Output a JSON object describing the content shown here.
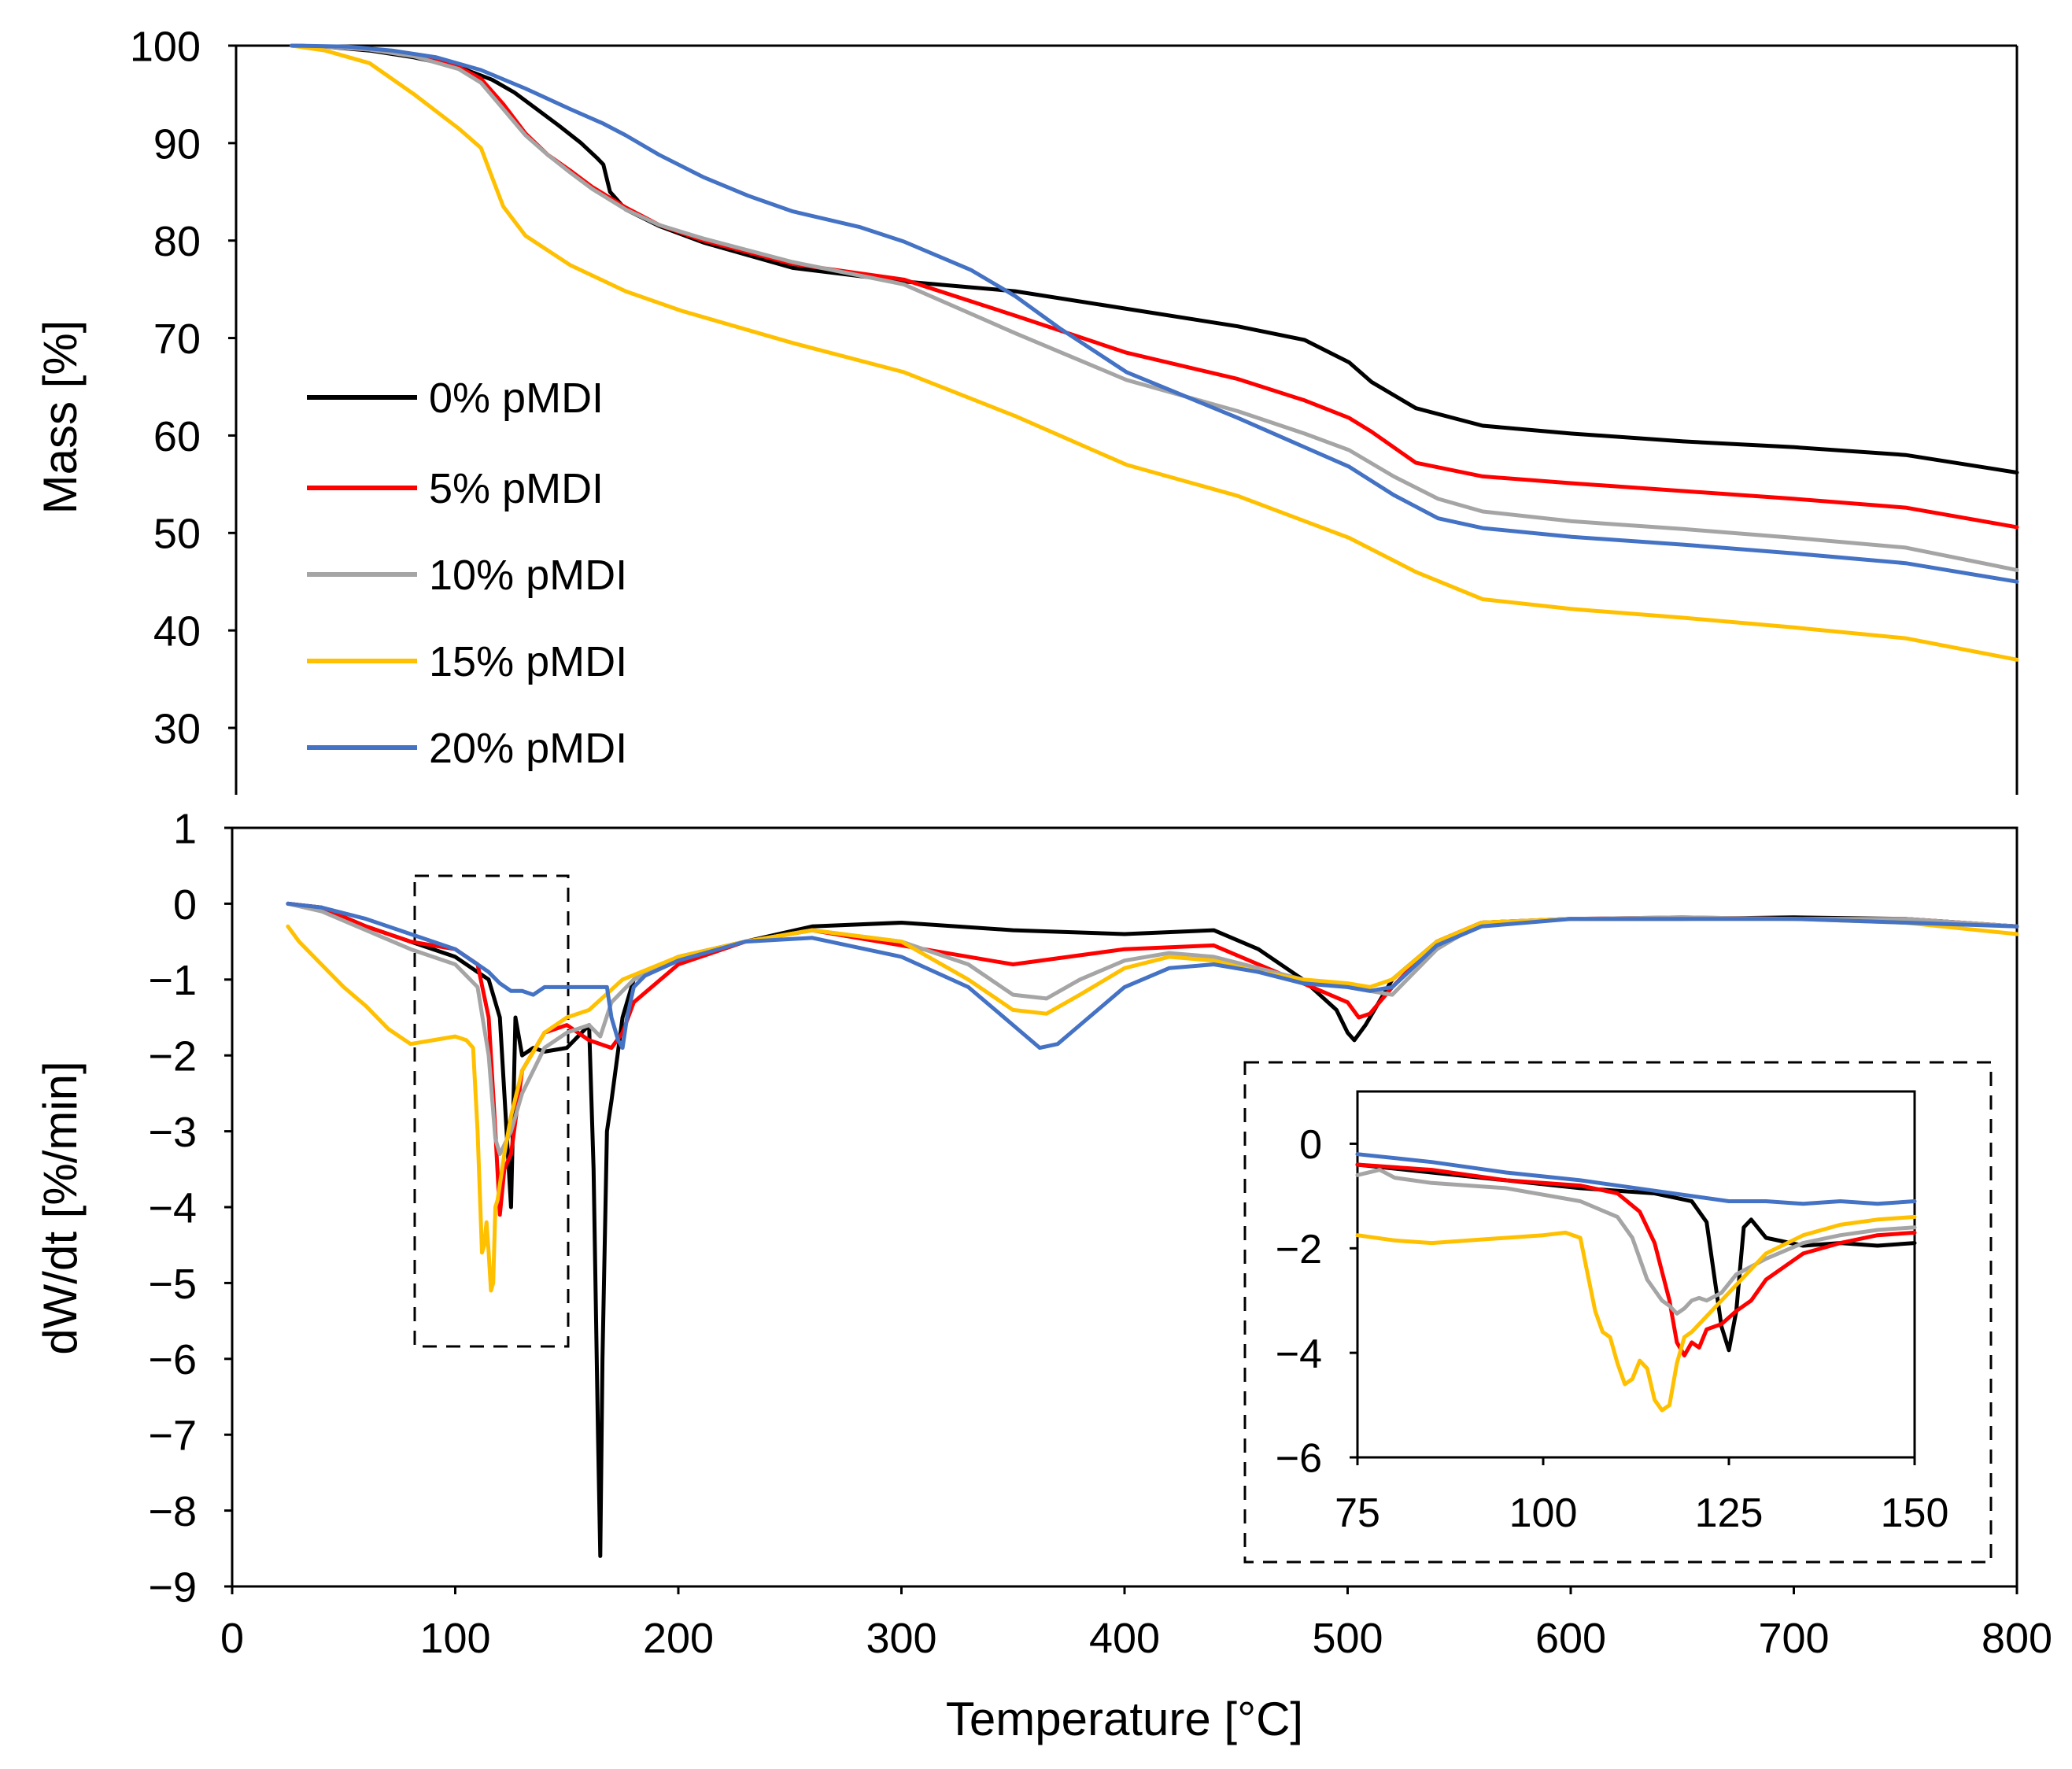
{
  "colors": {
    "0% pMDI": "#000000",
    "5% pMDI": "#ff0000",
    "10% pMDI": "#a5a5a5",
    "15% pMDI": "#ffc000",
    "20% pMDI": "#4472c4"
  },
  "chart_data": [
    {
      "id": "tg",
      "type": "line",
      "title": "",
      "xlabel": "Temperature [°C]",
      "ylabel": "Mass [%]",
      "xlim": [
        0,
        800
      ],
      "ylim": [
        25,
        100
      ],
      "yticks": [
        30,
        40,
        50,
        60,
        70,
        80,
        90,
        100
      ],
      "grid": false,
      "legend": "left",
      "series": [
        {
          "name": "0% pMDI",
          "x": [
            25,
            40,
            60,
            80,
            100,
            115,
            125,
            135,
            145,
            155,
            162,
            165,
            168,
            175,
            190,
            210,
            250,
            300,
            350,
            400,
            450,
            480,
            500,
            510,
            530,
            560,
            600,
            650,
            700,
            750,
            800
          ],
          "y": [
            100,
            99.9,
            99.5,
            98.8,
            97.8,
            96.5,
            95.2,
            93.5,
            91.8,
            90,
            88.5,
            87.8,
            85,
            83.2,
            81.5,
            79.8,
            77.2,
            75.8,
            74.8,
            73,
            71.2,
            69.8,
            67.5,
            65.5,
            62.8,
            61,
            60.2,
            59.4,
            58.8,
            58,
            56.2
          ]
        },
        {
          "name": "5% pMDI",
          "x": [
            25,
            40,
            60,
            80,
            100,
            110,
            120,
            130,
            140,
            150,
            160,
            175,
            190,
            210,
            250,
            300,
            350,
            400,
            450,
            480,
            500,
            510,
            530,
            560,
            600,
            650,
            700,
            750,
            800
          ],
          "y": [
            100,
            99.9,
            99.6,
            99,
            97.8,
            96.6,
            94,
            91,
            88.8,
            87.2,
            85.5,
            83.4,
            81.6,
            80,
            77.6,
            76,
            72.3,
            68.5,
            65.8,
            63.6,
            61.8,
            60.4,
            57.2,
            55.8,
            55.1,
            54.3,
            53.5,
            52.6,
            50.6
          ]
        },
        {
          "name": "10% pMDI",
          "x": [
            25,
            40,
            60,
            80,
            100,
            110,
            120,
            130,
            140,
            150,
            160,
            175,
            190,
            210,
            250,
            300,
            350,
            400,
            450,
            480,
            500,
            520,
            540,
            560,
            600,
            650,
            700,
            750,
            800
          ],
          "y": [
            100,
            99.9,
            99.6,
            98.9,
            97.6,
            96.2,
            93.5,
            90.8,
            88.8,
            87,
            85.3,
            83.2,
            81.6,
            80.2,
            77.8,
            75.5,
            70.5,
            65.7,
            62.5,
            60.2,
            58.5,
            55.8,
            53.5,
            52.2,
            51.2,
            50.4,
            49.5,
            48.5,
            46.2
          ]
        },
        {
          "name": "15% pMDI",
          "x": [
            25,
            40,
            60,
            80,
            100,
            110,
            115,
            120,
            130,
            150,
            175,
            200,
            250,
            300,
            350,
            400,
            450,
            500,
            530,
            560,
            600,
            650,
            700,
            750,
            800
          ],
          "y": [
            100,
            99.5,
            98.2,
            95,
            91.5,
            89.5,
            86.5,
            83.5,
            80.5,
            77.5,
            74.8,
            72.8,
            69.5,
            66.5,
            62,
            57,
            53.8,
            49.5,
            46,
            43.2,
            42.2,
            41.3,
            40.3,
            39.2,
            37
          ]
        },
        {
          "name": "20% pMDI",
          "x": [
            25,
            50,
            70,
            90,
            110,
            130,
            150,
            165,
            175,
            190,
            210,
            230,
            250,
            280,
            300,
            330,
            350,
            370,
            400,
            450,
            500,
            520,
            540,
            560,
            600,
            650,
            700,
            750,
            800
          ],
          "y": [
            100,
            99.9,
            99.5,
            98.8,
            97.5,
            95.6,
            93.5,
            92,
            90.8,
            88.8,
            86.5,
            84.6,
            83,
            81.4,
            79.9,
            77,
            74.3,
            71,
            66.5,
            61.8,
            56.8,
            53.9,
            51.5,
            50.5,
            49.6,
            48.8,
            47.9,
            46.9,
            45
          ]
        }
      ]
    },
    {
      "id": "dtg",
      "type": "line",
      "title": "",
      "xlabel": "Temperature [°C]",
      "ylabel": "dW/dt [%/min]",
      "xlim": [
        0,
        800
      ],
      "ylim": [
        -9,
        1
      ],
      "xticks": [
        0,
        100,
        200,
        300,
        400,
        500,
        600,
        700,
        800
      ],
      "yticks": [
        1,
        0,
        -1,
        -2,
        -3,
        -4,
        -5,
        -6,
        -7,
        -8,
        -9
      ],
      "grid": false,
      "annotations": [
        "dashed box marking the 80–150 °C region magnified in the inset"
      ],
      "series": [
        {
          "name": "0% pMDI",
          "x": [
            25,
            40,
            60,
            80,
            100,
            115,
            120,
            122,
            125,
            127,
            130,
            135,
            140,
            150,
            160,
            162,
            164,
            165,
            166,
            168,
            170,
            175,
            180,
            200,
            230,
            260,
            300,
            350,
            400,
            440,
            460,
            480,
            495,
            500,
            503,
            508,
            520,
            540,
            560,
            600,
            650,
            700,
            750,
            800
          ],
          "y": [
            0,
            -0.05,
            -0.3,
            -0.5,
            -0.7,
            -1,
            -1.5,
            -2.5,
            -4,
            -1.5,
            -2,
            -1.9,
            -1.95,
            -1.9,
            -1.6,
            -3.5,
            -7,
            -8.6,
            -6,
            -3,
            -2.6,
            -1.5,
            -1,
            -0.7,
            -0.5,
            -0.3,
            -0.25,
            -0.35,
            -0.4,
            -0.35,
            -0.6,
            -1,
            -1.4,
            -1.7,
            -1.8,
            -1.6,
            -1,
            -0.5,
            -0.25,
            -0.2,
            -0.2,
            -0.18,
            -0.2,
            -0.3
          ]
        },
        {
          "name": "5% pMDI",
          "x": [
            25,
            40,
            60,
            80,
            100,
            110,
            115,
            118,
            120,
            122,
            125,
            130,
            140,
            150,
            160,
            165,
            170,
            175,
            180,
            200,
            230,
            260,
            300,
            350,
            400,
            440,
            460,
            480,
            500,
            505,
            510,
            520,
            540,
            560,
            600,
            650,
            700,
            750,
            800
          ],
          "y": [
            0,
            -0.05,
            -0.3,
            -0.5,
            -0.6,
            -0.8,
            -1.5,
            -3,
            -4.1,
            -3.5,
            -3.3,
            -2.2,
            -1.7,
            -1.6,
            -1.8,
            -1.85,
            -1.9,
            -1.7,
            -1.3,
            -0.8,
            -0.5,
            -0.35,
            -0.55,
            -0.8,
            -0.6,
            -0.55,
            -0.8,
            -1.05,
            -1.3,
            -1.5,
            -1.45,
            -1.1,
            -0.5,
            -0.25,
            -0.2,
            -0.18,
            -0.2,
            -0.2,
            -0.3
          ]
        },
        {
          "name": "10% pMDI",
          "x": [
            25,
            40,
            60,
            80,
            100,
            110,
            115,
            118,
            120,
            125,
            130,
            140,
            150,
            160,
            165,
            170,
            180,
            200,
            230,
            260,
            300,
            330,
            350,
            365,
            380,
            400,
            420,
            440,
            460,
            480,
            500,
            510,
            520,
            540,
            560,
            600,
            650,
            700,
            750,
            800
          ],
          "y": [
            0,
            -0.1,
            -0.35,
            -0.6,
            -0.8,
            -1.1,
            -2,
            -3.1,
            -3.3,
            -3,
            -2.5,
            -1.9,
            -1.7,
            -1.6,
            -1.75,
            -1.3,
            -1,
            -0.7,
            -0.5,
            -0.35,
            -0.5,
            -0.8,
            -1.2,
            -1.25,
            -1,
            -0.75,
            -0.65,
            -0.7,
            -0.85,
            -1,
            -1.1,
            -1.15,
            -1.2,
            -0.6,
            -0.25,
            -0.2,
            -0.18,
            -0.2,
            -0.2,
            -0.3
          ]
        },
        {
          "name": "15% pMDI",
          "x": [
            25,
            30,
            40,
            50,
            60,
            70,
            80,
            90,
            100,
            105,
            108,
            110,
            112,
            113,
            114,
            115,
            116,
            117,
            118,
            119,
            120,
            122,
            125,
            130,
            140,
            150,
            160,
            175,
            200,
            230,
            260,
            300,
            330,
            350,
            365,
            380,
            400,
            420,
            440,
            460,
            480,
            500,
            510,
            520,
            540,
            560,
            600,
            650,
            700,
            750,
            800
          ],
          "y": [
            -0.3,
            -0.5,
            -0.8,
            -1.1,
            -1.35,
            -1.65,
            -1.85,
            -1.8,
            -1.75,
            -1.8,
            -1.9,
            -3,
            -4.6,
            -4.5,
            -4.2,
            -4.6,
            -5.1,
            -5.0,
            -4,
            -3.9,
            -3.7,
            -3.3,
            -2.8,
            -2.2,
            -1.7,
            -1.5,
            -1.4,
            -1,
            -0.7,
            -0.5,
            -0.35,
            -0.5,
            -1,
            -1.4,
            -1.45,
            -1.2,
            -0.85,
            -0.7,
            -0.75,
            -0.9,
            -1,
            -1.05,
            -1.1,
            -1,
            -0.5,
            -0.25,
            -0.2,
            -0.2,
            -0.2,
            -0.25,
            -0.4
          ]
        },
        {
          "name": "20% pMDI",
          "x": [
            25,
            40,
            60,
            80,
            100,
            115,
            120,
            125,
            130,
            135,
            140,
            150,
            160,
            165,
            168,
            170,
            173,
            175,
            177,
            180,
            185,
            200,
            230,
            260,
            300,
            330,
            350,
            362,
            370,
            380,
            400,
            420,
            440,
            460,
            480,
            500,
            510,
            520,
            540,
            560,
            600,
            650,
            700,
            750,
            800
          ],
          "y": [
            0,
            -0.05,
            -0.2,
            -0.4,
            -0.6,
            -0.9,
            -1.05,
            -1.15,
            -1.15,
            -1.2,
            -1.1,
            -1.1,
            -1.1,
            -1.1,
            -1.1,
            -1.5,
            -1.8,
            -1.9,
            -1.5,
            -1.1,
            -0.95,
            -0.75,
            -0.5,
            -0.45,
            -0.7,
            -1.1,
            -1.6,
            -1.9,
            -1.85,
            -1.6,
            -1.1,
            -0.85,
            -0.8,
            -0.9,
            -1.05,
            -1.1,
            -1.15,
            -1.1,
            -0.55,
            -0.3,
            -0.2,
            -0.2,
            -0.2,
            -0.25,
            -0.3
          ]
        }
      ]
    },
    {
      "id": "inset",
      "type": "line",
      "title": "",
      "xlabel": "",
      "ylabel": "",
      "xlim": [
        75,
        150
      ],
      "ylim": [
        -6,
        1
      ],
      "xticks": [
        75,
        100,
        125,
        150
      ],
      "yticks": [
        0,
        -2,
        -4,
        -6
      ],
      "grid": false,
      "series": [
        {
          "name": "0% pMDI",
          "x": [
            75,
            85,
            95,
            105,
            115,
            120,
            122,
            123,
            124,
            125,
            126,
            127,
            128,
            130,
            135,
            140,
            145,
            150
          ],
          "y": [
            -0.4,
            -0.55,
            -0.7,
            -0.85,
            -0.95,
            -1.1,
            -1.5,
            -2.5,
            -3.5,
            -3.95,
            -3.2,
            -1.6,
            -1.45,
            -1.8,
            -1.95,
            -1.9,
            -1.95,
            -1.9
          ]
        },
        {
          "name": "5% pMDI",
          "x": [
            75,
            85,
            95,
            105,
            110,
            113,
            115,
            117,
            118,
            119,
            120,
            121,
            122,
            124,
            126,
            128,
            130,
            135,
            140,
            145,
            150
          ],
          "y": [
            -0.4,
            -0.5,
            -0.7,
            -0.8,
            -0.95,
            -1.3,
            -1.9,
            -3,
            -3.8,
            -4.05,
            -3.8,
            -3.9,
            -3.55,
            -3.45,
            -3.2,
            -3,
            -2.6,
            -2.1,
            -1.9,
            -1.75,
            -1.7
          ]
        },
        {
          "name": "10% pMDI",
          "x": [
            75,
            78,
            80,
            85,
            95,
            105,
            110,
            112,
            114,
            116,
            117,
            118,
            119,
            120,
            121,
            122,
            124,
            126,
            130,
            135,
            140,
            145,
            150
          ],
          "y": [
            -0.6,
            -0.5,
            -0.65,
            -0.75,
            -0.85,
            -1.1,
            -1.4,
            -1.8,
            -2.6,
            -3,
            -3.1,
            -3.25,
            -3.15,
            -3.0,
            -2.95,
            -3.0,
            -2.85,
            -2.5,
            -2.2,
            -1.9,
            -1.75,
            -1.65,
            -1.6
          ]
        },
        {
          "name": "15% pMDI",
          "x": [
            75,
            80,
            85,
            90,
            95,
            100,
            103,
            105,
            106,
            107,
            108,
            109,
            110,
            111,
            112,
            113,
            114,
            115,
            116,
            117,
            118,
            119,
            120,
            122,
            124,
            126,
            128,
            130,
            135,
            140,
            145,
            150
          ],
          "y": [
            -1.75,
            -1.85,
            -1.9,
            -1.85,
            -1.8,
            -1.75,
            -1.7,
            -1.8,
            -2.5,
            -3.2,
            -3.6,
            -3.7,
            -4.2,
            -4.6,
            -4.5,
            -4.15,
            -4.3,
            -4.9,
            -5.1,
            -5.0,
            -4.2,
            -3.7,
            -3.6,
            -3.3,
            -3.0,
            -2.7,
            -2.4,
            -2.1,
            -1.75,
            -1.55,
            -1.45,
            -1.4
          ]
        },
        {
          "name": "20% pMDI",
          "x": [
            75,
            85,
            95,
            105,
            115,
            120,
            125,
            130,
            135,
            140,
            145,
            150
          ],
          "y": [
            -0.2,
            -0.35,
            -0.55,
            -0.7,
            -0.9,
            -1.0,
            -1.1,
            -1.1,
            -1.15,
            -1.1,
            -1.15,
            -1.1
          ]
        }
      ]
    }
  ]
}
